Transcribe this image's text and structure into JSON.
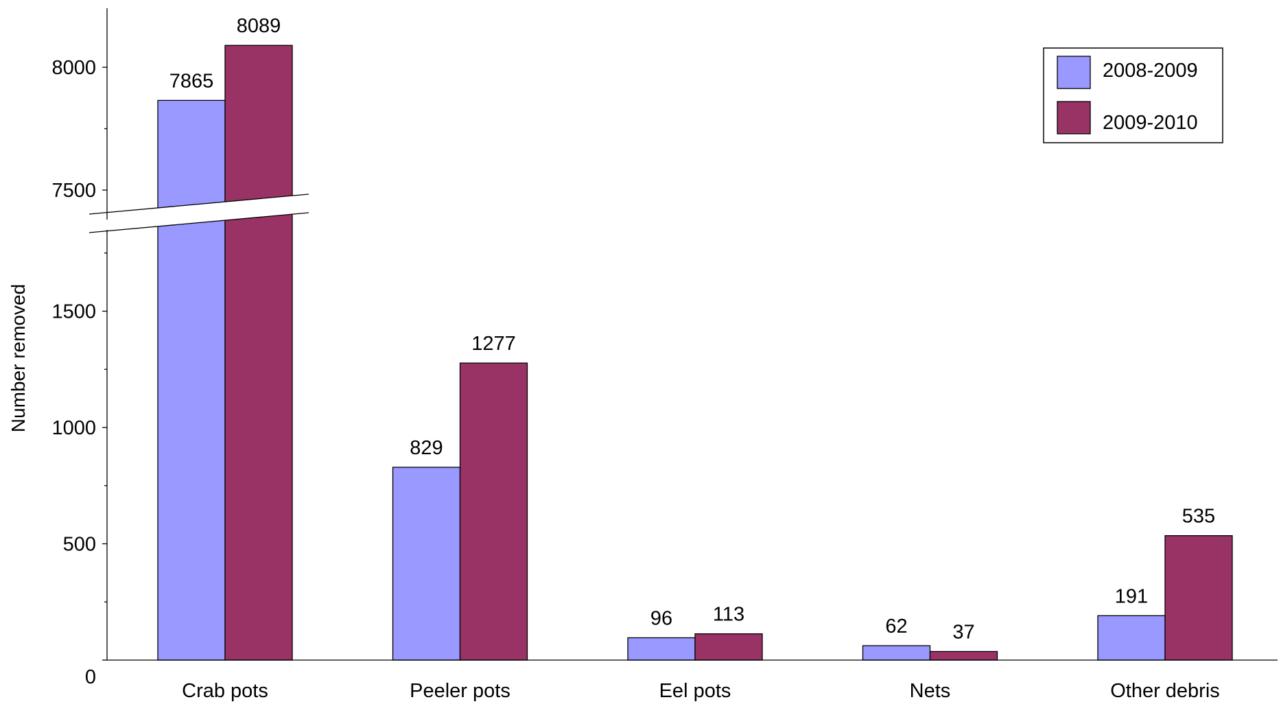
{
  "chart_data": {
    "type": "bar",
    "title": "",
    "xlabel": "",
    "ylabel": "Number removed",
    "categories": [
      "Crab pots",
      "Peeler pots",
      "Eel pots",
      "Nets",
      "Other debris"
    ],
    "series": [
      {
        "name": "2008-2009",
        "color": "#9999ff",
        "values": [
          7865,
          829,
          96,
          62,
          191
        ]
      },
      {
        "name": "2009-2010",
        "color": "#993366",
        "values": [
          8089,
          1277,
          113,
          37,
          535
        ]
      }
    ],
    "y_axis": {
      "broken": true,
      "lower_segment": {
        "range": [
          0,
          1900
        ],
        "ticks": [
          0,
          500,
          1000,
          1500
        ]
      },
      "upper_segment": {
        "range": [
          7350,
          8250
        ],
        "ticks": [
          7500,
          8000
        ]
      },
      "tick_labels": [
        "0",
        "500",
        "1000",
        "1500",
        "7500",
        "8000"
      ]
    },
    "legend": {
      "placement": "top-right"
    },
    "data_labels": true,
    "grid": false
  }
}
